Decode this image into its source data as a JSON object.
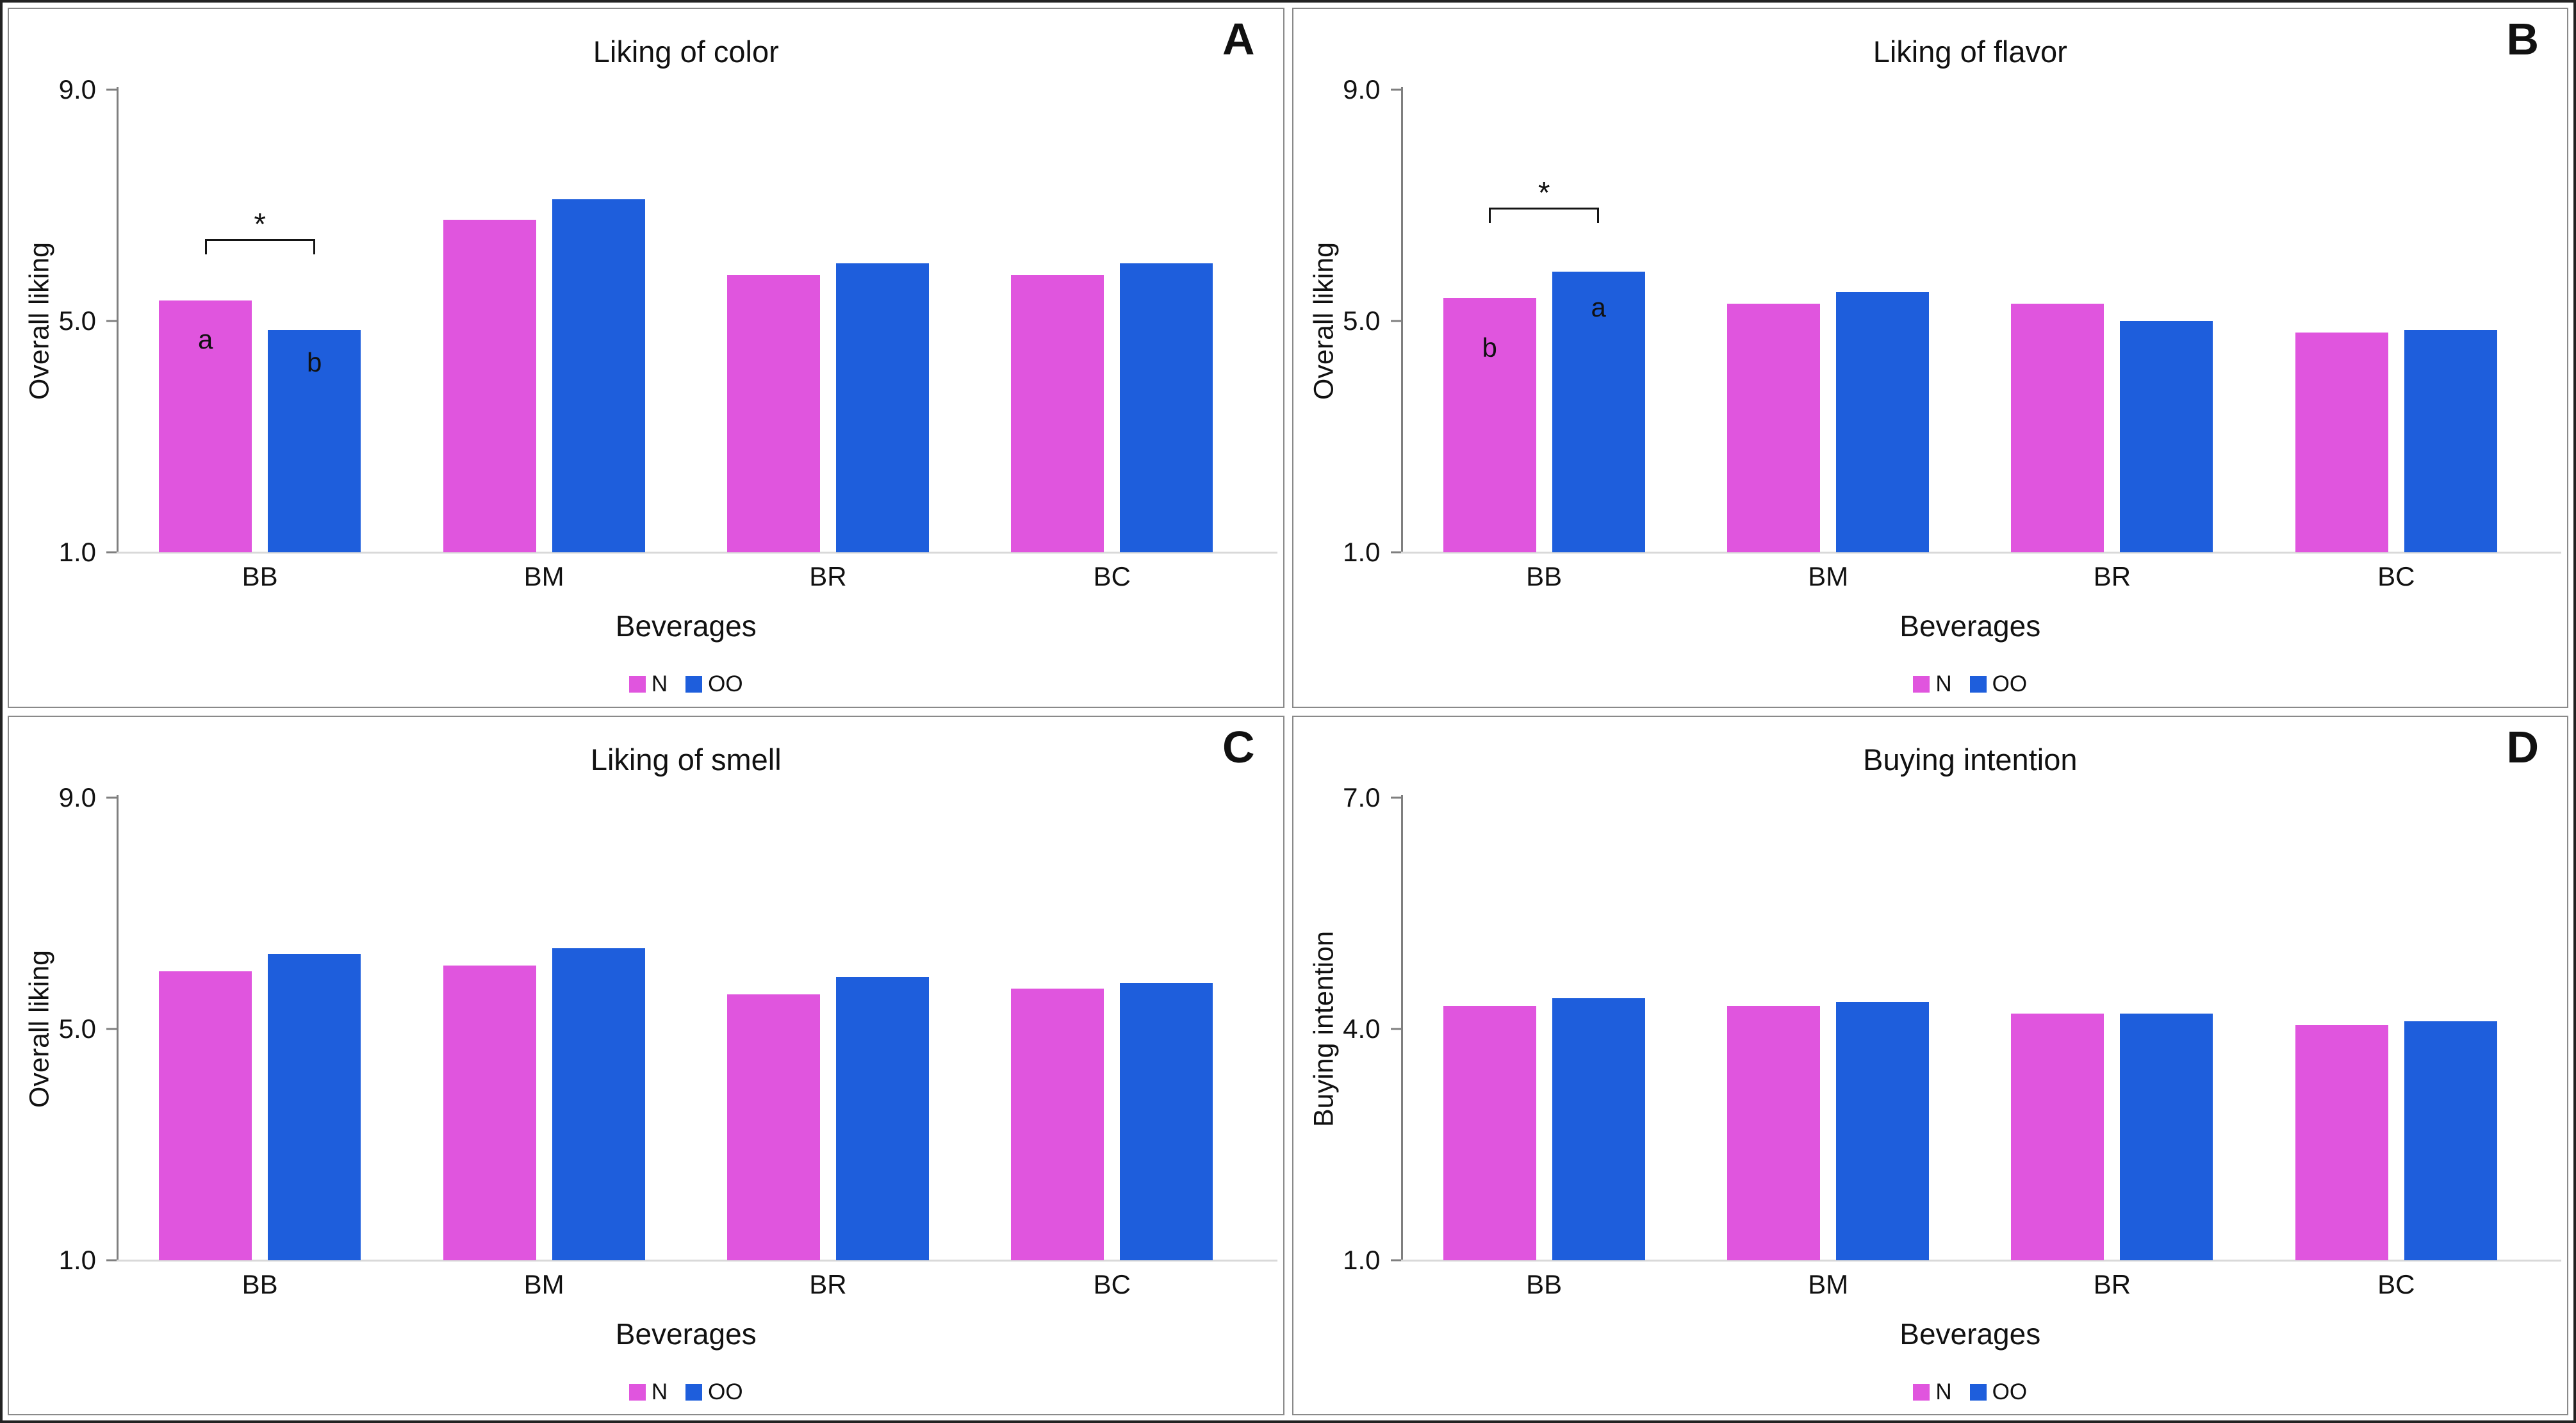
{
  "legend": {
    "n_label": "N",
    "oo_label": "OO"
  },
  "colors": {
    "n": "#E055DE",
    "oo": "#1E5EDC",
    "axis": "#7f7f7f",
    "baseline": "#d9d9d9",
    "panel_border": "#8a8a8a",
    "figure_border": "#222222"
  },
  "chart_data": [
    {
      "type": "bar",
      "panel_letter": "A",
      "title": "Liking of color",
      "ylabel": "Overall liking",
      "xlabel": "Beverages",
      "ymin": 1,
      "ymax": 9,
      "yticks": [
        "9.0",
        "5.0",
        "1.0"
      ],
      "categories": [
        "BB",
        "BM",
        "BR",
        "BC"
      ],
      "series": [
        {
          "name": "N",
          "values": [
            5.35,
            6.75,
            5.8,
            5.8
          ]
        },
        {
          "name": "OO",
          "values": [
            4.85,
            7.1,
            6.0,
            6.0
          ]
        }
      ],
      "significance": {
        "group_index": 0,
        "symbol": "*",
        "bracket_y": 6.15,
        "letters": [
          {
            "series_index": 0,
            "text": "a",
            "y": 4.45
          },
          {
            "series_index": 1,
            "text": "b",
            "y": 4.05
          }
        ]
      }
    },
    {
      "type": "bar",
      "panel_letter": "B",
      "title": "Liking of flavor",
      "ylabel": "Overall liking",
      "xlabel": "Beverages",
      "ymin": 1,
      "ymax": 9,
      "yticks": [
        "9.0",
        "5.0",
        "1.0"
      ],
      "categories": [
        "BB",
        "BM",
        "BR",
        "BC"
      ],
      "series": [
        {
          "name": "N",
          "values": [
            5.4,
            5.3,
            5.3,
            4.8
          ]
        },
        {
          "name": "OO",
          "values": [
            5.85,
            5.5,
            5.0,
            4.85
          ]
        }
      ],
      "significance": {
        "group_index": 0,
        "symbol": "*",
        "bracket_y": 6.7,
        "letters": [
          {
            "series_index": 0,
            "text": "b",
            "y": 4.3
          },
          {
            "series_index": 1,
            "text": "a",
            "y": 5.0
          }
        ]
      }
    },
    {
      "type": "bar",
      "panel_letter": "C",
      "title": "Liking of smell",
      "ylabel": "Overall liking",
      "xlabel": "Beverages",
      "ymin": 1,
      "ymax": 9,
      "yticks": [
        "9.0",
        "5.0",
        "1.0"
      ],
      "categories": [
        "BB",
        "BM",
        "BR",
        "BC"
      ],
      "series": [
        {
          "name": "N",
          "values": [
            6.0,
            6.1,
            5.6,
            5.7
          ]
        },
        {
          "name": "OO",
          "values": [
            6.3,
            6.4,
            5.9,
            5.8
          ]
        }
      ],
      "significance": null
    },
    {
      "type": "bar",
      "panel_letter": "D",
      "title": "Buying intention",
      "ylabel": "Buying intention",
      "xlabel": "Beverages",
      "ymin": 1,
      "ymax": 7,
      "yticks": [
        "7.0",
        "4.0",
        "1.0"
      ],
      "categories": [
        "BB",
        "BM",
        "BR",
        "BC"
      ],
      "series": [
        {
          "name": "N",
          "values": [
            4.3,
            4.3,
            4.2,
            4.05
          ]
        },
        {
          "name": "OO",
          "values": [
            4.4,
            4.35,
            4.2,
            4.1
          ]
        }
      ],
      "significance": null
    }
  ]
}
